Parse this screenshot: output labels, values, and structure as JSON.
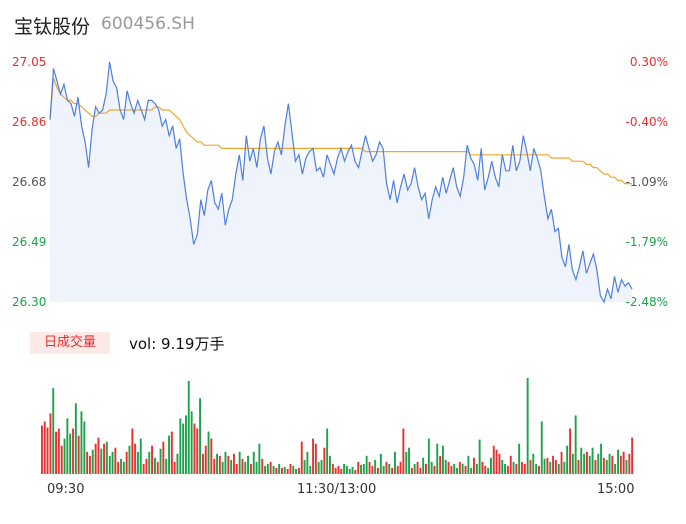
{
  "stock": {
    "name": "宝钛股份",
    "code": "600456.SH"
  },
  "volume": {
    "tag": "日成交量",
    "summary": "vol: 9.19万手"
  },
  "colors": {
    "up": "#e8302f",
    "down": "#1aa34a",
    "price": "#4f7fe0",
    "avg": "#f0a82a"
  },
  "chart_data": {
    "type": "line",
    "y_left_ticks": [
      "27.05",
      "26.86",
      "26.68",
      "26.49",
      "26.30"
    ],
    "y_right_ticks": [
      "0.30%",
      "-0.40%",
      "-1.09%",
      "-1.79%",
      "-2.48%"
    ],
    "x_ticks": [
      "09:30",
      "11:30/13:00",
      "15:00"
    ],
    "ylim": [
      26.3,
      27.05
    ],
    "series": [
      {
        "values": [
          26.87,
          27.03,
          26.99,
          26.95,
          26.98,
          26.93,
          26.92,
          26.88,
          26.94,
          26.85,
          26.8,
          26.72,
          26.84,
          26.91,
          26.89,
          26.9,
          26.95,
          27.05,
          26.99,
          26.97,
          26.9,
          26.87,
          26.96,
          26.92,
          26.89,
          26.93,
          26.9,
          26.87,
          26.93,
          26.93,
          26.92,
          26.9,
          26.85,
          26.87,
          26.82,
          26.85,
          26.78,
          26.81,
          26.7,
          26.62,
          26.56,
          26.48,
          26.51,
          26.62,
          26.57,
          26.65,
          26.68,
          26.61,
          26.59,
          26.64,
          26.54,
          26.59,
          26.62,
          26.7,
          26.76,
          26.68,
          26.82,
          26.74,
          26.78,
          26.72,
          26.81,
          26.85,
          26.75,
          26.7,
          26.77,
          26.8,
          26.76,
          26.85,
          26.92,
          26.83,
          26.74,
          26.76,
          26.7,
          26.75,
          26.77,
          26.78,
          26.71,
          26.72,
          26.69,
          26.76,
          26.73,
          26.7,
          26.75,
          26.78,
          26.74,
          26.77,
          26.79,
          26.74,
          26.72,
          26.77,
          26.82,
          26.78,
          26.74,
          26.76,
          26.8,
          26.78,
          26.67,
          26.62,
          26.68,
          26.61,
          26.66,
          26.7,
          26.65,
          26.67,
          26.72,
          26.66,
          26.62,
          26.64,
          26.56,
          26.62,
          26.66,
          26.63,
          26.69,
          26.64,
          26.68,
          26.72,
          26.66,
          26.63,
          26.69,
          26.79,
          26.75,
          26.73,
          26.68,
          26.78,
          26.65,
          26.69,
          26.74,
          26.69,
          26.66,
          26.76,
          26.71,
          26.71,
          26.79,
          26.71,
          26.74,
          26.82,
          26.77,
          26.71,
          26.78,
          26.75,
          26.71,
          26.63,
          26.56,
          26.59,
          26.52,
          26.53,
          26.44,
          26.41,
          26.48,
          26.4,
          26.37,
          26.41,
          26.46,
          26.39,
          26.42,
          26.45,
          26.4,
          26.32,
          26.3,
          26.34,
          26.31,
          26.38,
          26.33,
          26.37,
          26.35,
          26.36,
          26.34
        ]
      },
      {
        "values": [
          26.87,
          27.0,
          26.97,
          26.95,
          26.94,
          26.93,
          26.93,
          26.92,
          26.92,
          26.91,
          26.9,
          26.89,
          26.88,
          26.88,
          26.89,
          26.89,
          26.89,
          26.9,
          26.9,
          26.9,
          26.9,
          26.9,
          26.9,
          26.9,
          26.9,
          26.9,
          26.9,
          26.9,
          26.9,
          26.9,
          26.91,
          26.91,
          26.9,
          26.9,
          26.9,
          26.89,
          26.88,
          26.87,
          26.85,
          26.83,
          26.82,
          26.81,
          26.8,
          26.8,
          26.79,
          26.79,
          26.79,
          26.79,
          26.79,
          26.78,
          26.78,
          26.78,
          26.78,
          26.78,
          26.78,
          26.78,
          26.78,
          26.78,
          26.78,
          26.78,
          26.78,
          26.78,
          26.78,
          26.78,
          26.78,
          26.78,
          26.78,
          26.78,
          26.78,
          26.78,
          26.78,
          26.78,
          26.78,
          26.78,
          26.78,
          26.78,
          26.78,
          26.78,
          26.78,
          26.78,
          26.78,
          26.78,
          26.78,
          26.78,
          26.78,
          26.78,
          26.78,
          26.78,
          26.78,
          26.78,
          26.77,
          26.77,
          26.77,
          26.77,
          26.77,
          26.77,
          26.77,
          26.77,
          26.77,
          26.77,
          26.77,
          26.77,
          26.77,
          26.77,
          26.77,
          26.77,
          26.77,
          26.77,
          26.77,
          26.77,
          26.77,
          26.77,
          26.77,
          26.77,
          26.77,
          26.77,
          26.77,
          26.77,
          26.77,
          26.77,
          26.76,
          26.76,
          26.76,
          26.76,
          26.76,
          26.76,
          26.76,
          26.76,
          26.76,
          26.76,
          26.76,
          26.76,
          26.76,
          26.76,
          26.76,
          26.76,
          26.76,
          26.76,
          26.76,
          26.76,
          26.76,
          26.76,
          26.76,
          26.75,
          26.75,
          26.75,
          26.75,
          26.75,
          26.75,
          26.74,
          26.74,
          26.74,
          26.74,
          26.73,
          26.73,
          26.72,
          26.72,
          26.71,
          26.7,
          26.7,
          26.69,
          26.69,
          26.68,
          26.68,
          26.67,
          26.67,
          26.67
        ]
      }
    ],
    "volume_bars": [
      [
        48,
        1
      ],
      [
        52,
        1
      ],
      [
        46,
        1
      ],
      [
        60,
        1
      ],
      [
        85,
        0
      ],
      [
        42,
        1
      ],
      [
        45,
        1
      ],
      [
        28,
        1
      ],
      [
        35,
        0
      ],
      [
        55,
        0
      ],
      [
        40,
        0
      ],
      [
        45,
        1
      ],
      [
        70,
        0
      ],
      [
        38,
        1
      ],
      [
        62,
        0
      ],
      [
        52,
        0
      ],
      [
        22,
        1
      ],
      [
        18,
        1
      ],
      [
        24,
        0
      ],
      [
        30,
        1
      ],
      [
        36,
        1
      ],
      [
        25,
        0
      ],
      [
        30,
        1
      ],
      [
        32,
        0
      ],
      [
        18,
        0
      ],
      [
        22,
        0
      ],
      [
        26,
        1
      ],
      [
        12,
        1
      ],
      [
        15,
        0
      ],
      [
        12,
        0
      ],
      [
        22,
        1
      ],
      [
        28,
        0
      ],
      [
        45,
        1
      ],
      [
        30,
        1
      ],
      [
        22,
        0
      ],
      [
        35,
        0
      ],
      [
        10,
        1
      ],
      [
        15,
        1
      ],
      [
        22,
        0
      ],
      [
        28,
        1
      ],
      [
        16,
        0
      ],
      [
        12,
        1
      ],
      [
        25,
        0
      ],
      [
        32,
        1
      ],
      [
        15,
        0
      ],
      [
        38,
        0
      ],
      [
        42,
        1
      ],
      [
        12,
        1
      ],
      [
        20,
        0
      ],
      [
        55,
        0
      ],
      [
        50,
        0
      ],
      [
        58,
        0
      ],
      [
        92,
        0
      ],
      [
        62,
        0
      ],
      [
        50,
        1
      ],
      [
        45,
        1
      ],
      [
        75,
        0
      ],
      [
        20,
        1
      ],
      [
        28,
        1
      ],
      [
        42,
        0
      ],
      [
        35,
        1
      ],
      [
        15,
        1
      ],
      [
        20,
        0
      ],
      [
        18,
        1
      ],
      [
        12,
        0
      ],
      [
        22,
        0
      ],
      [
        18,
        1
      ],
      [
        14,
        0
      ],
      [
        20,
        1
      ],
      [
        10,
        1
      ],
      [
        22,
        0
      ],
      [
        15,
        1
      ],
      [
        12,
        0
      ],
      [
        18,
        0
      ],
      [
        10,
        1
      ],
      [
        22,
        0
      ],
      [
        12,
        0
      ],
      [
        30,
        0
      ],
      [
        15,
        1
      ],
      [
        8,
        0
      ],
      [
        10,
        0
      ],
      [
        12,
        1
      ],
      [
        8,
        0
      ],
      [
        6,
        1
      ],
      [
        10,
        0
      ],
      [
        6,
        1
      ],
      [
        7,
        0
      ],
      [
        5,
        1
      ],
      [
        10,
        1
      ],
      [
        8,
        0
      ],
      [
        5,
        0
      ],
      [
        6,
        1
      ],
      [
        32,
        1
      ],
      [
        14,
        0
      ],
      [
        22,
        0
      ],
      [
        8,
        0
      ],
      [
        35,
        1
      ],
      [
        30,
        1
      ],
      [
        12,
        0
      ],
      [
        14,
        0
      ],
      [
        26,
        1
      ],
      [
        45,
        0
      ],
      [
        18,
        0
      ],
      [
        10,
        1
      ],
      [
        6,
        1
      ],
      [
        8,
        1
      ],
      [
        5,
        1
      ],
      [
        10,
        0
      ],
      [
        8,
        0
      ],
      [
        5,
        0
      ],
      [
        7,
        0
      ],
      [
        4,
        1
      ],
      [
        12,
        1
      ],
      [
        9,
        0
      ],
      [
        10,
        0
      ],
      [
        18,
        0
      ],
      [
        12,
        1
      ],
      [
        8,
        1
      ],
      [
        14,
        0
      ],
      [
        6,
        1
      ],
      [
        20,
        0
      ],
      [
        8,
        0
      ],
      [
        12,
        1
      ],
      [
        10,
        0
      ],
      [
        6,
        1
      ],
      [
        22,
        0
      ],
      [
        8,
        1
      ],
      [
        12,
        1
      ],
      [
        45,
        1
      ],
      [
        22,
        0
      ],
      [
        26,
        0
      ],
      [
        6,
        1
      ],
      [
        10,
        0
      ],
      [
        12,
        1
      ],
      [
        6,
        1
      ],
      [
        16,
        0
      ],
      [
        10,
        1
      ],
      [
        35,
        0
      ],
      [
        12,
        0
      ],
      [
        8,
        1
      ],
      [
        30,
        0
      ],
      [
        18,
        1
      ],
      [
        28,
        0
      ],
      [
        14,
        0
      ],
      [
        12,
        1
      ],
      [
        8,
        1
      ],
      [
        10,
        0
      ],
      [
        6,
        0
      ],
      [
        12,
        1
      ],
      [
        10,
        0
      ],
      [
        8,
        1
      ],
      [
        18,
        0
      ],
      [
        6,
        0
      ],
      [
        16,
        1
      ],
      [
        10,
        0
      ],
      [
        34,
        0
      ],
      [
        12,
        1
      ],
      [
        8,
        1
      ],
      [
        6,
        0
      ],
      [
        16,
        0
      ],
      [
        28,
        1
      ],
      [
        24,
        1
      ],
      [
        20,
        1
      ],
      [
        14,
        0
      ],
      [
        10,
        0
      ],
      [
        8,
        1
      ],
      [
        18,
        1
      ],
      [
        12,
        0
      ],
      [
        10,
        1
      ],
      [
        30,
        0
      ],
      [
        12,
        1
      ],
      [
        10,
        1
      ],
      [
        95,
        0
      ],
      [
        14,
        1
      ],
      [
        20,
        0
      ],
      [
        10,
        0
      ],
      [
        8,
        1
      ],
      [
        52,
        0
      ],
      [
        15,
        0
      ],
      [
        16,
        1
      ],
      [
        12,
        0
      ],
      [
        18,
        1
      ],
      [
        14,
        1
      ],
      [
        10,
        0
      ],
      [
        22,
        1
      ],
      [
        12,
        0
      ],
      [
        28,
        0
      ],
      [
        45,
        1
      ],
      [
        20,
        0
      ],
      [
        58,
        0
      ],
      [
        14,
        1
      ],
      [
        26,
        0
      ],
      [
        20,
        0
      ],
      [
        22,
        1
      ],
      [
        18,
        0
      ],
      [
        26,
        0
      ],
      [
        14,
        1
      ],
      [
        20,
        0
      ],
      [
        30,
        0
      ],
      [
        16,
        1
      ],
      [
        14,
        0
      ],
      [
        20,
        0
      ],
      [
        18,
        1
      ],
      [
        10,
        0
      ],
      [
        24,
        0
      ],
      [
        18,
        1
      ],
      [
        22,
        1
      ],
      [
        14,
        0
      ],
      [
        20,
        1
      ],
      [
        36,
        1
      ]
    ]
  }
}
